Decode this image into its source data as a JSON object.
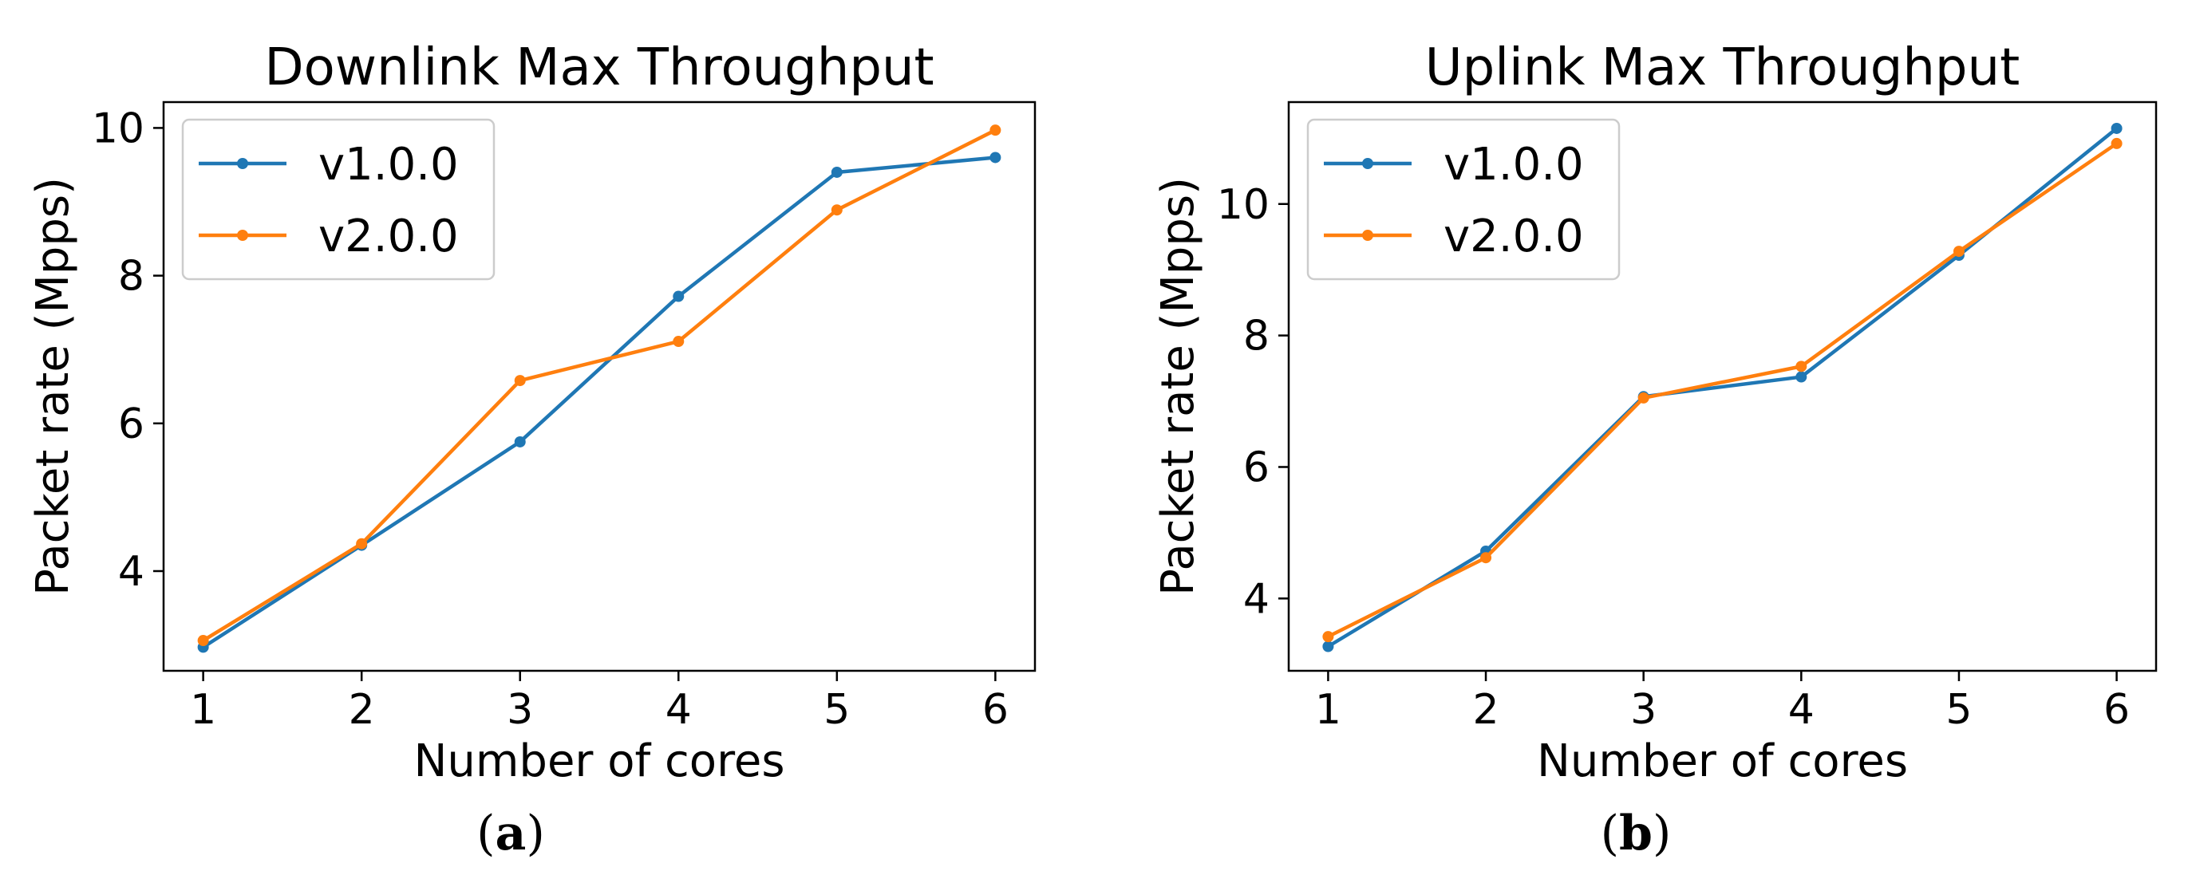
{
  "chart_data": [
    {
      "type": "line",
      "title": "Downlink Max Throughput",
      "xlabel": "Number of cores",
      "ylabel": "Packet rate (Mpps)",
      "x": [
        1,
        2,
        3,
        4,
        5,
        6
      ],
      "xticks": [
        "1",
        "2",
        "3",
        "4",
        "5",
        "6"
      ],
      "yticks": [
        "4",
        "6",
        "8",
        "10"
      ],
      "ytick_values": [
        4,
        6,
        8,
        10
      ],
      "xlim": [
        0.75,
        6.25
      ],
      "ylim": [
        2.65,
        10.35
      ],
      "legend": "upper-left",
      "caption_letter": "a",
      "series": [
        {
          "name": "v1.0.0",
          "color": "#1f77b4",
          "values": [
            2.97,
            4.35,
            5.75,
            7.72,
            9.4,
            9.6
          ]
        },
        {
          "name": "v2.0.0",
          "color": "#ff7f0e",
          "values": [
            3.06,
            4.37,
            6.58,
            7.11,
            8.89,
            9.97
          ]
        }
      ]
    },
    {
      "type": "line",
      "title": "Uplink Max Throughput",
      "xlabel": "Number of cores",
      "ylabel": "Packet rate (Mpps)",
      "x": [
        1,
        2,
        3,
        4,
        5,
        6
      ],
      "xticks": [
        "1",
        "2",
        "3",
        "4",
        "5",
        "6"
      ],
      "yticks": [
        "4",
        "6",
        "8",
        "10"
      ],
      "ytick_values": [
        4,
        6,
        8,
        10
      ],
      "xlim": [
        0.75,
        6.25
      ],
      "ylim": [
        2.9,
        11.55
      ],
      "legend": "upper-left",
      "caption_letter": "b",
      "series": [
        {
          "name": "v1.0.0",
          "color": "#1f77b4",
          "values": [
            3.27,
            4.72,
            7.07,
            7.37,
            9.22,
            11.15
          ]
        },
        {
          "name": "v2.0.0",
          "color": "#ff7f0e",
          "values": [
            3.42,
            4.62,
            7.05,
            7.53,
            9.28,
            10.92
          ]
        }
      ]
    }
  ]
}
